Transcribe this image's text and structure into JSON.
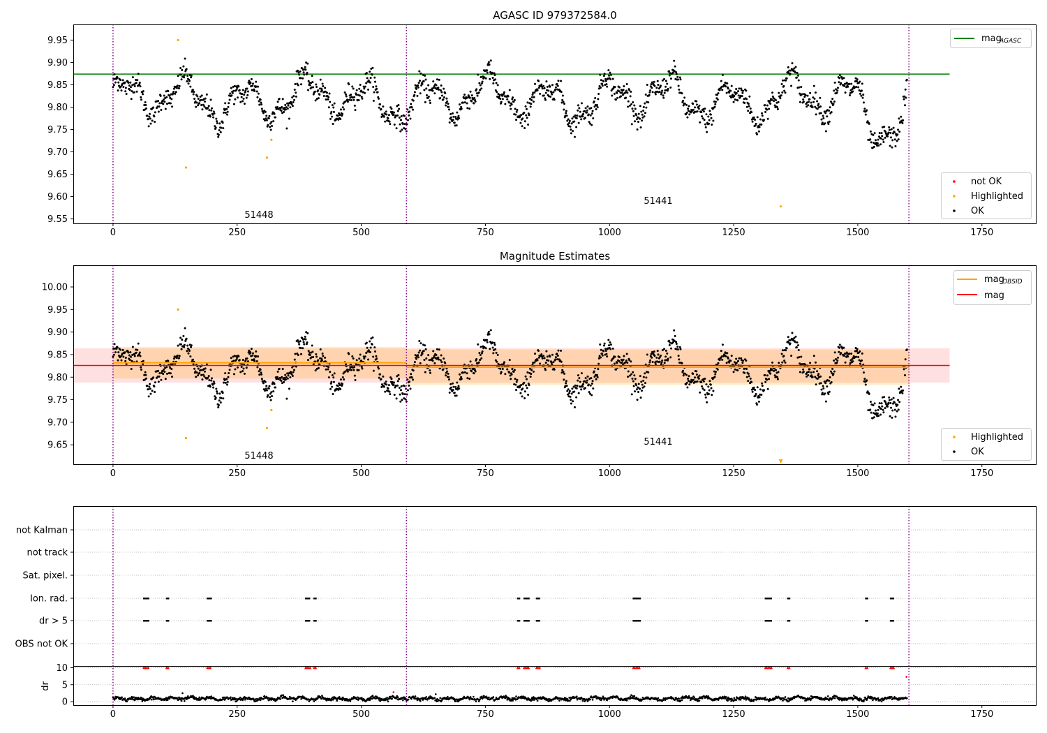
{
  "chart_data": [
    {
      "type": "scatter",
      "title": "AGASC ID 979372584.0",
      "xlabel": "",
      "ylabel": "",
      "xlim": [
        -80,
        1860
      ],
      "ylim": [
        9.54,
        9.985
      ],
      "xticks": [
        0,
        250,
        500,
        750,
        1000,
        1250,
        1500,
        1750
      ],
      "yticks": [
        9.55,
        9.6,
        9.65,
        9.7,
        9.75,
        9.8,
        9.85,
        9.9,
        9.95
      ],
      "obs_boundaries": [
        0,
        591,
        1603
      ],
      "obs_labels": [
        {
          "text": "51448",
          "x": 295,
          "y": 9.555
        },
        {
          "text": "51441",
          "x": 1095,
          "y": 9.587
        }
      ],
      "hlines": [
        {
          "name": "mag_AGASC",
          "y": 9.874,
          "x": [
            -80,
            1685
          ],
          "color": "#008000"
        }
      ],
      "highlighted": [
        [
          131,
          9.95
        ],
        [
          147,
          9.665
        ],
        [
          310,
          9.687
        ],
        [
          319,
          9.727
        ],
        [
          1345,
          9.578
        ]
      ],
      "series_note": "OK points follow ~1600 samples varying between ~9.72 and ~9.92",
      "legend_lines": [
        {
          "label": "mag",
          "sub": "AGASC",
          "color": "#008000"
        }
      ],
      "legend_points": [
        {
          "label": "not OK",
          "color": "#ff0000"
        },
        {
          "label": "Highlighted",
          "color": "#ffa500"
        },
        {
          "label": "OK",
          "color": "#000000"
        }
      ]
    },
    {
      "type": "scatter",
      "title": "Magnitude Estimates",
      "xlabel": "",
      "ylabel": "",
      "xlim": [
        -80,
        1860
      ],
      "ylim": [
        9.607,
        10.048
      ],
      "xticks": [
        0,
        250,
        500,
        750,
        1000,
        1250,
        1500,
        1750
      ],
      "yticks": [
        9.65,
        9.7,
        9.75,
        9.8,
        9.85,
        9.9,
        9.95,
        10.0
      ],
      "obs_boundaries": [
        0,
        591,
        1603
      ],
      "obs_labels": [
        {
          "text": "51448",
          "x": 295,
          "y": 9.617
        },
        {
          "text": "51441",
          "x": 1095,
          "y": 9.649
        }
      ],
      "mag": {
        "y": 9.826,
        "band": [
          9.788,
          9.864
        ],
        "x": [
          -80,
          1685
        ],
        "color": "#ff0000"
      },
      "mag_obsid": [
        {
          "x": [
            0,
            591
          ],
          "y": 9.832,
          "band": [
            9.797,
            9.867
          ]
        },
        {
          "x": [
            591,
            1603
          ],
          "y": 9.822,
          "band": [
            9.783,
            9.861
          ]
        }
      ],
      "highlighted": [
        [
          131,
          9.95
        ],
        [
          147,
          9.665
        ],
        [
          310,
          9.687
        ],
        [
          319,
          9.727
        ]
      ],
      "legend_lines": [
        {
          "label": "mag",
          "sub": "OBSID",
          "color": "#ffa500"
        },
        {
          "label": "mag",
          "sub": "",
          "color": "#ff0000"
        }
      ],
      "legend_points": [
        {
          "label": "Highlighted",
          "color": "#ffa500"
        },
        {
          "label": "OK",
          "color": "#000000"
        }
      ]
    },
    {
      "type": "scatter",
      "title": "",
      "xlim": [
        -80,
        1860
      ],
      "xticks": [
        0,
        250,
        500,
        750,
        1000,
        1250,
        1500,
        1750
      ],
      "obs_boundaries": [
        0,
        591,
        1603
      ],
      "flags": [
        "not Kalman",
        "not track",
        "Sat. pixel.",
        "Ion. rad.",
        "dr > 5",
        "OBS not OK"
      ],
      "flag_clusters": [
        [
          62,
          72
        ],
        [
          108,
          113
        ],
        [
          190,
          198
        ],
        [
          388,
          397
        ],
        [
          405,
          410
        ],
        [
          815,
          820
        ],
        [
          828,
          838
        ],
        [
          853,
          860
        ],
        [
          1048,
          1062
        ],
        [
          1314,
          1326
        ],
        [
          1359,
          1363
        ],
        [
          1516,
          1520
        ],
        [
          1566,
          1573
        ]
      ],
      "dr": {
        "ylabel": "dr",
        "ylim": [
          -1,
          10.5
        ],
        "yticks": [
          0,
          5,
          10
        ],
        "outliers": [
          [
            565,
            2.8
          ],
          [
            650,
            2.2
          ],
          [
            140,
            2.5
          ],
          [
            1598,
            7.3
          ]
        ]
      }
    }
  ]
}
